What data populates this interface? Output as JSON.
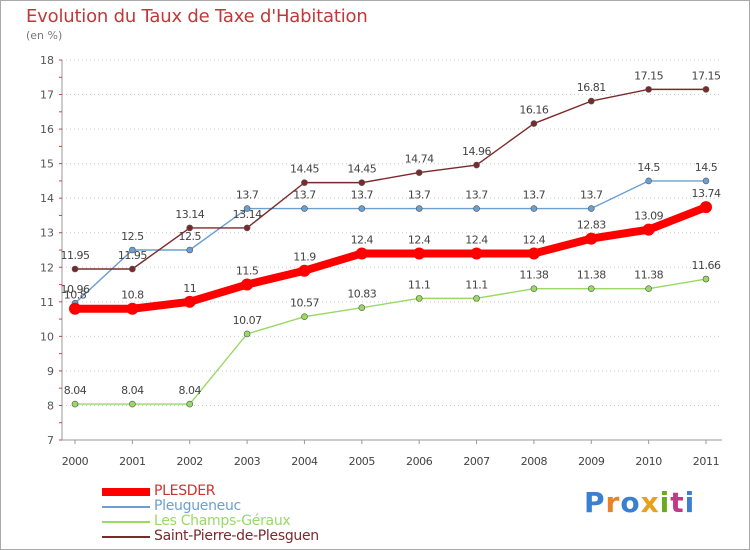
{
  "title": "Evolution du Taux de Taxe d'Habitation",
  "unit_label": "(en %)",
  "logo": {
    "text": "Proxiti",
    "letters": [
      "P",
      "r",
      "o",
      "x",
      "i",
      "t",
      "i"
    ],
    "colors": [
      "#3a7fd0",
      "#e8832a",
      "#3a7fd0",
      "#e8a020",
      "#6aaa20",
      "#c03a8a",
      "#3a7fd0"
    ]
  },
  "chart_data": {
    "type": "line",
    "title": "Evolution du Taux de Taxe d'Habitation",
    "ylabel": "(en %)",
    "xlabel": "",
    "x": [
      "2000",
      "2001",
      "2002",
      "2003",
      "2004",
      "2005",
      "2006",
      "2007",
      "2008",
      "2009",
      "2010",
      "2011"
    ],
    "ylim": [
      7,
      18
    ],
    "yticks": [
      "7",
      "8",
      "9",
      "10",
      "11",
      "12",
      "13",
      "14",
      "15",
      "16",
      "17",
      "18"
    ],
    "grid": "horizontal dotted",
    "legend": "bottom-left",
    "series": [
      {
        "name": "PLESDER",
        "color": "#ff0000",
        "emphasis": true,
        "values": [
          10.8,
          10.8,
          11,
          11.5,
          11.9,
          12.4,
          12.4,
          12.4,
          12.4,
          12.83,
          13.09,
          13.74
        ],
        "labels": [
          "10.8",
          "10.8",
          "11",
          "11.5",
          "11.9",
          "12.4",
          "12.4",
          "12.4",
          "12.4",
          "12.83",
          "13.09",
          "13.74"
        ]
      },
      {
        "name": "Pleugueneuc",
        "color": "#6b9fd1",
        "values": [
          10.96,
          12.5,
          12.5,
          13.7,
          13.7,
          13.7,
          13.7,
          13.7,
          13.7,
          13.7,
          14.5,
          14.5
        ],
        "labels": [
          "10.96",
          "12.5",
          "12.5",
          "13.7",
          "13.7",
          "13.7",
          "13.7",
          "13.7",
          "13.7",
          "13.7",
          "14.5",
          "14.5"
        ]
      },
      {
        "name": "Les Champs-Géraux",
        "color": "#99d966",
        "values": [
          8.04,
          8.04,
          8.04,
          10.07,
          10.57,
          10.83,
          11.1,
          11.1,
          11.38,
          11.38,
          11.38,
          11.66
        ],
        "labels": [
          "8.04",
          "8.04",
          "8.04",
          "10.07",
          "10.57",
          "10.83",
          "11.1",
          "11.1",
          "11.38",
          "11.38",
          "11.38",
          "11.66"
        ]
      },
      {
        "name": "Saint-Pierre-de-Plesguen",
        "color": "#7a2a2a",
        "values": [
          11.95,
          11.95,
          13.14,
          13.14,
          14.45,
          14.45,
          14.74,
          14.96,
          16.16,
          16.81,
          17.15,
          17.15
        ],
        "labels": [
          "11.95",
          "11.95",
          "13.14",
          "13.14",
          "14.45",
          "14.45",
          "14.74",
          "14.96",
          "16.16",
          "16.81",
          "17.15",
          "17.15"
        ]
      }
    ]
  }
}
